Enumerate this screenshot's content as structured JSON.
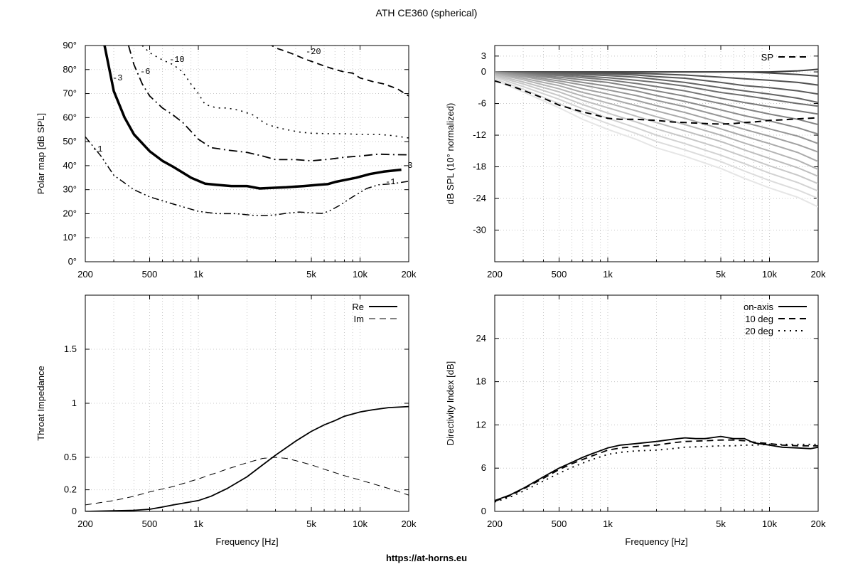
{
  "page": {
    "title": "ATH CE360 (spherical)",
    "footer_url": "https://at-horns.eu"
  },
  "chart_data": [
    {
      "id": "polar",
      "type": "line",
      "xlabel": "",
      "ylabel": "Polar map [dB SPL]",
      "xscale": "log",
      "xlim": [
        200,
        20000
      ],
      "ylim": [
        0,
        90
      ],
      "xtick_values": [
        200,
        500,
        1000,
        5000,
        10000,
        20000
      ],
      "xtick_labels": [
        "200",
        "500",
        "1k",
        "5k",
        "10k",
        "20k"
      ],
      "ytick_values": [
        0,
        10,
        20,
        30,
        40,
        50,
        60,
        70,
        80,
        90
      ],
      "ytick_labels": [
        "0°",
        "10°",
        "20°",
        "30°",
        "40°",
        "50°",
        "60°",
        "70°",
        "80°",
        "90°"
      ],
      "grid": true,
      "series": [
        {
          "label": "-1",
          "style": "dashdotdot",
          "width": 1.5,
          "x": [
            200,
            250,
            300,
            400,
            500,
            700,
            1000,
            1300,
            1700,
            2200,
            2600,
            3000,
            3500,
            4200,
            5200,
            5800,
            6400,
            7500,
            9000,
            11000,
            13000,
            16000,
            20000
          ],
          "y": [
            52,
            44,
            36,
            30,
            27,
            24,
            21,
            20,
            20,
            19.3,
            19.2,
            19.5,
            20.2,
            20.7,
            20.3,
            20.1,
            21,
            23.5,
            27,
            30.5,
            32,
            32.5,
            33.5
          ]
        },
        {
          "label": "-3",
          "style": "solid",
          "width": 3.5,
          "x": [
            263,
            300,
            350,
            400,
            500,
            600,
            700,
            900,
            1100,
            1300,
            1600,
            2000,
            2400,
            2800,
            3500,
            4500,
            5500,
            6300,
            7000,
            8000,
            9500,
            11500,
            14000,
            18000
          ],
          "y": [
            90,
            71,
            60,
            53,
            46,
            42,
            39.5,
            35,
            32.5,
            32,
            31.5,
            31.5,
            30.5,
            30.7,
            31,
            31.5,
            32,
            32.3,
            33.2,
            34,
            35,
            36.5,
            37.5,
            38.3
          ]
        },
        {
          "label": "-6",
          "style": "dashdot",
          "width": 1.8,
          "x": [
            370,
            400,
            450,
            500,
            600,
            700,
            800,
            1000,
            1200,
            1500,
            2000,
            2500,
            3000,
            4000,
            5000,
            6500,
            8000,
            10000,
            13000,
            16000,
            20000
          ],
          "y": [
            90,
            82,
            74,
            69,
            64,
            61,
            58,
            51,
            47.5,
            46.5,
            45.5,
            44,
            42.5,
            42.5,
            42,
            42.7,
            43.5,
            44,
            44.8,
            44.6,
            44.5
          ]
        },
        {
          "label": "-10",
          "style": "dotted",
          "width": 1.6,
          "x": [
            450,
            500,
            600,
            700,
            800,
            900,
            1000,
            1100,
            1300,
            1500,
            1800,
            2200,
            2600,
            3000,
            3500,
            4200,
            5000,
            6500,
            8000,
            10000,
            13000,
            16000,
            20000
          ],
          "y": [
            90,
            87,
            84,
            82,
            79,
            74,
            70,
            65.5,
            64,
            64,
            63,
            61,
            57.5,
            56,
            55,
            54,
            53.5,
            53.3,
            53.3,
            53,
            53,
            52.5,
            51.5
          ]
        },
        {
          "label": "-20",
          "style": "dashed",
          "width": 1.8,
          "x": [
            2700,
            3000,
            3500,
            4000,
            4500,
            5200,
            6000,
            7000,
            8000,
            9000,
            10000,
            12000,
            14000,
            17000,
            20000
          ],
          "y": [
            91,
            89,
            87.5,
            86,
            84.5,
            83,
            81.5,
            80,
            79,
            78.5,
            76.5,
            75,
            74,
            72,
            69
          ]
        }
      ],
      "contour_labels": [
        "-1",
        "-3",
        "-6",
        "-10",
        "-20",
        "-3",
        "-1"
      ]
    },
    {
      "id": "spl",
      "type": "line",
      "xlabel": "",
      "ylabel": "dB SPL (10° normalized)",
      "xscale": "log",
      "xlim": [
        200,
        20000
      ],
      "ylim": [
        -36,
        5
      ],
      "xtick_values": [
        200,
        500,
        1000,
        5000,
        10000,
        20000
      ],
      "xtick_labels": [
        "200",
        "500",
        "1k",
        "5k",
        "10k",
        "20k"
      ],
      "ytick_values": [
        3,
        0,
        -6,
        -12,
        -18,
        -24,
        -30
      ],
      "ytick_labels": [
        "3",
        "0",
        "-6",
        "-12",
        "-18",
        "-24",
        "-30"
      ],
      "grid": true,
      "legend": {
        "position": "top-right",
        "entries": [
          "SP"
        ]
      },
      "sp_series": {
        "name": "SP",
        "x": [
          200,
          250,
          300,
          400,
          500,
          600,
          700,
          800,
          1000,
          1200,
          1500,
          2000,
          2500,
          3000,
          4000,
          5000,
          6000,
          7000,
          8000,
          10000,
          12000,
          15000,
          20000
        ],
        "y": [
          -1.7,
          -2.6,
          -3.5,
          -5,
          -6.3,
          -7,
          -7.6,
          -8,
          -8.8,
          -9,
          -9,
          -9.2,
          -9.5,
          -9.6,
          -9.8,
          -9.9,
          -9.8,
          -9.6,
          -9.5,
          -9.2,
          -9.1,
          -8.9,
          -8.7
        ]
      },
      "angle_family": {
        "x": [
          200,
          300,
          500,
          700,
          1000,
          1500,
          2000,
          3000,
          5000,
          7000,
          10000,
          15000,
          20000
        ],
        "curves": [
          [
            0,
            0,
            0,
            0,
            0,
            0,
            0,
            0,
            0,
            0,
            0,
            0.2,
            0.5
          ],
          [
            0,
            0,
            0,
            0,
            0,
            0,
            0,
            0,
            0,
            0,
            -0.2,
            -0.5,
            -0.8
          ],
          [
            0,
            0,
            -0.1,
            -0.1,
            -0.2,
            -0.3,
            -0.4,
            -0.6,
            -1,
            -1.3,
            -1.6,
            -2,
            -2.5
          ],
          [
            0,
            -0.1,
            -0.2,
            -0.3,
            -0.4,
            -0.6,
            -0.9,
            -1.2,
            -2,
            -2.6,
            -3,
            -3.6,
            -4.2
          ],
          [
            0,
            -0.1,
            -0.3,
            -0.5,
            -0.7,
            -1,
            -1.4,
            -2,
            -3,
            -3.6,
            -4.2,
            -5,
            -5.8
          ],
          [
            0,
            -0.2,
            -0.5,
            -0.8,
            -1.1,
            -1.6,
            -2,
            -2.7,
            -3.9,
            -4.5,
            -5.2,
            -6,
            -6.5
          ],
          [
            0,
            -0.3,
            -0.7,
            -1.1,
            -1.5,
            -2.2,
            -2.8,
            -3.6,
            -5,
            -5.8,
            -6.6,
            -7.4,
            -8
          ],
          [
            0,
            -0.4,
            -1,
            -1.5,
            -2,
            -2.9,
            -3.6,
            -4.6,
            -6,
            -7,
            -8,
            -9,
            -10
          ],
          [
            0,
            -0.5,
            -1.3,
            -2,
            -2.7,
            -3.6,
            -4.5,
            -5.6,
            -7.2,
            -8.3,
            -9.3,
            -10.6,
            -11.8
          ],
          [
            -0.1,
            -0.7,
            -1.7,
            -2.5,
            -3.4,
            -4.5,
            -5.4,
            -6.6,
            -8.4,
            -9.6,
            -10.8,
            -12.2,
            -13.6
          ],
          [
            -0.2,
            -0.9,
            -2.1,
            -3.2,
            -4.2,
            -5.4,
            -6.4,
            -7.7,
            -9.6,
            -10.9,
            -12.2,
            -13.8,
            -15.2
          ],
          [
            -0.3,
            -1.2,
            -2.6,
            -3.9,
            -5,
            -6.4,
            -7.4,
            -8.8,
            -10.8,
            -12.2,
            -13.6,
            -15.3,
            -17
          ],
          [
            -0.4,
            -1.5,
            -3.2,
            -4.6,
            -5.9,
            -7.4,
            -8.5,
            -10,
            -12,
            -13.5,
            -15,
            -16.8,
            -18.5
          ],
          [
            -0.6,
            -1.9,
            -3.8,
            -5.4,
            -6.8,
            -8.4,
            -9.6,
            -11.2,
            -13.2,
            -14.8,
            -16.4,
            -18.2,
            -19.8
          ],
          [
            -0.8,
            -2.3,
            -4.5,
            -6.2,
            -7.8,
            -9.5,
            -10.8,
            -12.4,
            -14.5,
            -16.1,
            -17.8,
            -19.6,
            -21.2
          ],
          [
            -1,
            -2.8,
            -5.2,
            -7,
            -8.8,
            -10.6,
            -12,
            -13.6,
            -15.8,
            -17.4,
            -19.2,
            -21,
            -22.6
          ],
          [
            -1.3,
            -3.3,
            -6,
            -8,
            -9.8,
            -11.7,
            -13.2,
            -14.8,
            -17,
            -18.8,
            -20.6,
            -22.4,
            -24
          ],
          [
            -1.6,
            -3.8,
            -6.8,
            -9,
            -10.9,
            -12.8,
            -14.4,
            -16,
            -18.3,
            -20.2,
            -22,
            -23.8,
            -25.6
          ]
        ]
      }
    },
    {
      "id": "impedance",
      "type": "line",
      "xlabel": "Frequency [Hz]",
      "ylabel": "Throat Impedance",
      "xscale": "log",
      "xlim": [
        200,
        20000
      ],
      "ylim": [
        0,
        2
      ],
      "xtick_values": [
        200,
        500,
        1000,
        5000,
        10000,
        20000
      ],
      "xtick_labels": [
        "200",
        "500",
        "1k",
        "5k",
        "10k",
        "20k"
      ],
      "ytick_values": [
        0,
        0.2,
        0.5,
        1,
        1.5
      ],
      "ytick_labels": [
        "0",
        "0.2",
        "0.5",
        "1",
        "1.5"
      ],
      "grid": true,
      "legend": {
        "position": "top-right",
        "entries": [
          "Re",
          "Im"
        ]
      },
      "series": [
        {
          "name": "Re",
          "style": "solid",
          "x": [
            200,
            300,
            400,
            500,
            600,
            700,
            800,
            1000,
            1200,
            1500,
            2000,
            2500,
            3000,
            4000,
            5000,
            6000,
            7000,
            8000,
            10000,
            12000,
            15000,
            20000
          ],
          "y": [
            0,
            0.005,
            0.01,
            0.02,
            0.04,
            0.06,
            0.075,
            0.1,
            0.14,
            0.21,
            0.32,
            0.43,
            0.52,
            0.65,
            0.74,
            0.8,
            0.84,
            0.88,
            0.92,
            0.94,
            0.96,
            0.97
          ]
        },
        {
          "name": "Im",
          "style": "dashed",
          "x": [
            200,
            300,
            400,
            500,
            700,
            1000,
            1500,
            2000,
            2500,
            3000,
            3500,
            4000,
            5000,
            6000,
            8000,
            10000,
            13000,
            16000,
            20000
          ],
          "y": [
            0.06,
            0.1,
            0.14,
            0.18,
            0.23,
            0.3,
            0.39,
            0.45,
            0.49,
            0.5,
            0.49,
            0.47,
            0.43,
            0.39,
            0.33,
            0.29,
            0.24,
            0.2,
            0.15
          ]
        }
      ]
    },
    {
      "id": "di",
      "type": "line",
      "xlabel": "Frequency [Hz]",
      "ylabel": "Directivity Index [dB]",
      "xscale": "log",
      "xlim": [
        200,
        20000
      ],
      "ylim": [
        0,
        30
      ],
      "xtick_values": [
        200,
        500,
        1000,
        5000,
        10000,
        20000
      ],
      "xtick_labels": [
        "200",
        "500",
        "1k",
        "5k",
        "10k",
        "20k"
      ],
      "ytick_values": [
        0,
        6,
        12,
        18,
        24
      ],
      "ytick_labels": [
        "0",
        "6",
        "12",
        "18",
        "24"
      ],
      "grid": true,
      "legend": {
        "position": "top-right",
        "entries": [
          "on-axis",
          "10 deg",
          "20 deg"
        ]
      },
      "series": [
        {
          "name": "on-axis",
          "style": "solid",
          "x": [
            200,
            250,
            300,
            400,
            500,
            600,
            700,
            800,
            1000,
            1200,
            1500,
            2000,
            2500,
            3000,
            3500,
            4000,
            5000,
            6000,
            7000,
            8000,
            10000,
            12000,
            15000,
            18000,
            20000
          ],
          "y": [
            1.5,
            2.3,
            3.2,
            4.8,
            6,
            6.8,
            7.5,
            8,
            8.8,
            9.2,
            9.4,
            9.7,
            10,
            10.2,
            10.1,
            10.1,
            10.4,
            10.1,
            10.1,
            9.5,
            9.2,
            8.9,
            8.8,
            8.7,
            8.9
          ]
        },
        {
          "name": "10 deg",
          "style": "dashed",
          "x": [
            200,
            250,
            300,
            400,
            500,
            600,
            700,
            800,
            1000,
            1200,
            1500,
            2000,
            2500,
            3000,
            4000,
            5000,
            6000,
            7000,
            8000,
            10000,
            12000,
            15000,
            20000
          ],
          "y": [
            1.4,
            2.2,
            3.1,
            4.6,
            5.8,
            6.6,
            7.2,
            7.7,
            8.5,
            8.8,
            9,
            9.2,
            9.5,
            9.7,
            9.8,
            9.9,
            9.9,
            9.8,
            9.6,
            9.4,
            9.2,
            9.1,
            9.1
          ]
        },
        {
          "name": "20 deg",
          "style": "dotted",
          "x": [
            200,
            250,
            300,
            400,
            500,
            600,
            700,
            800,
            1000,
            1200,
            1500,
            2000,
            2500,
            3000,
            4000,
            5000,
            6000,
            7000,
            8000,
            10000,
            12000,
            15000,
            20000
          ],
          "y": [
            1.3,
            2,
            2.8,
            4.2,
            5.3,
            6.1,
            6.7,
            7.2,
            7.9,
            8.2,
            8.4,
            8.5,
            8.7,
            8.9,
            9,
            9.1,
            9.1,
            9.2,
            9.2,
            9.3,
            9.3,
            9.3,
            9.3
          ]
        }
      ]
    }
  ]
}
